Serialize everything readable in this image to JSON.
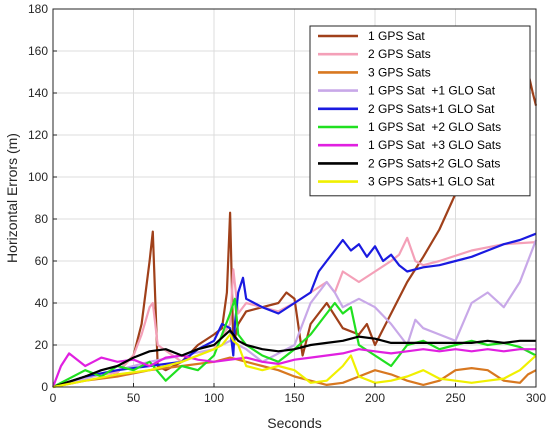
{
  "chart_data": {
    "type": "line",
    "xlabel": "Seconds",
    "ylabel": "Horizontal Errors (m)",
    "xlim": [
      0,
      300
    ],
    "ylim": [
      0,
      180
    ],
    "xticks": [
      0,
      50,
      100,
      150,
      200,
      250,
      300
    ],
    "yticks": [
      0,
      20,
      40,
      60,
      80,
      100,
      120,
      140,
      160,
      180
    ],
    "grid": true,
    "legend_position": "top-right",
    "series": [
      {
        "name": "1 GPS Sat",
        "color": "#a0401a",
        "x": [
          0,
          20,
          40,
          50,
          55,
          60,
          62,
          65,
          70,
          80,
          90,
          100,
          105,
          108,
          110,
          112,
          115,
          120,
          130,
          140,
          145,
          150,
          155,
          160,
          170,
          180,
          190,
          195,
          200,
          210,
          220,
          230,
          240,
          250,
          260,
          270,
          280,
          290,
          295,
          298,
          300
        ],
        "y": [
          0,
          5,
          7,
          15,
          30,
          60,
          74,
          10,
          8,
          12,
          20,
          25,
          28,
          45,
          83,
          20,
          30,
          36,
          38,
          40,
          45,
          42,
          15,
          30,
          40,
          28,
          25,
          30,
          20,
          35,
          50,
          62,
          75,
          92,
          105,
          115,
          125,
          135,
          150,
          140,
          134
        ]
      },
      {
        "name": "2 GPS Sats",
        "color": "#f4a0b8",
        "x": [
          0,
          20,
          40,
          50,
          55,
          60,
          62,
          65,
          80,
          100,
          110,
          112,
          115,
          120,
          130,
          140,
          150,
          160,
          170,
          175,
          180,
          190,
          200,
          210,
          215,
          220,
          225,
          230,
          240,
          260,
          280,
          300
        ],
        "y": [
          0,
          5,
          7,
          15,
          25,
          38,
          40,
          20,
          12,
          18,
          30,
          56,
          35,
          40,
          38,
          36,
          40,
          45,
          50,
          45,
          55,
          50,
          55,
          60,
          63,
          71,
          60,
          58,
          60,
          65,
          68,
          69
        ]
      },
      {
        "name": "3 GPS Sats",
        "color": "#d87820",
        "x": [
          0,
          20,
          40,
          60,
          80,
          100,
          110,
          120,
          130,
          140,
          150,
          160,
          170,
          180,
          190,
          200,
          210,
          220,
          230,
          240,
          250,
          260,
          270,
          280,
          290,
          295,
          300
        ],
        "y": [
          0,
          3,
          5,
          8,
          10,
          12,
          14,
          12,
          10,
          8,
          5,
          3,
          1,
          2,
          5,
          8,
          6,
          3,
          1,
          3,
          8,
          9,
          8,
          3,
          2,
          6,
          8
        ]
      },
      {
        "name": "1 GPS Sat  +1 GLO Sat",
        "color": "#c8a8e8",
        "x": [
          0,
          20,
          40,
          60,
          80,
          100,
          110,
          115,
          120,
          130,
          150,
          160,
          170,
          175,
          180,
          190,
          200,
          210,
          220,
          225,
          230,
          240,
          250,
          260,
          270,
          280,
          290,
          300
        ],
        "y": [
          0,
          4,
          8,
          12,
          15,
          18,
          22,
          20,
          18,
          12,
          20,
          40,
          50,
          45,
          38,
          42,
          38,
          30,
          20,
          32,
          28,
          25,
          22,
          40,
          45,
          38,
          50,
          70
        ]
      },
      {
        "name": "2 GPS Sats+1 GLO Sat",
        "color": "#1a1ae0",
        "x": [
          0,
          20,
          40,
          60,
          80,
          90,
          100,
          105,
          110,
          112,
          113,
          115,
          118,
          120,
          130,
          140,
          150,
          160,
          165,
          170,
          175,
          180,
          185,
          190,
          195,
          200,
          205,
          210,
          215,
          220,
          230,
          240,
          250,
          260,
          270,
          280,
          290,
          300
        ],
        "y": [
          0,
          5,
          8,
          10,
          12,
          18,
          22,
          30,
          28,
          15,
          30,
          45,
          52,
          42,
          38,
          35,
          40,
          45,
          55,
          60,
          65,
          70,
          65,
          68,
          62,
          67,
          60,
          63,
          58,
          55,
          57,
          58,
          60,
          62,
          65,
          68,
          70,
          73
        ]
      },
      {
        "name": "1 GPS Sat  +2 GLO Sats",
        "color": "#20e020",
        "x": [
          0,
          20,
          30,
          40,
          50,
          60,
          70,
          80,
          90,
          100,
          110,
          113,
          115,
          120,
          130,
          140,
          150,
          160,
          170,
          175,
          180,
          185,
          190,
          200,
          210,
          220,
          230,
          240,
          250,
          260,
          270,
          280,
          290,
          300
        ],
        "y": [
          0,
          8,
          5,
          10,
          8,
          12,
          3,
          10,
          8,
          15,
          35,
          42,
          25,
          20,
          15,
          12,
          18,
          25,
          35,
          40,
          35,
          38,
          20,
          15,
          10,
          20,
          22,
          18,
          20,
          22,
          20,
          21,
          19,
          15
        ]
      },
      {
        "name": "1 GPS Sat  +3 GLO Sats",
        "color": "#e020e0",
        "x": [
          0,
          5,
          10,
          15,
          20,
          25,
          30,
          40,
          50,
          60,
          70,
          80,
          90,
          100,
          110,
          120,
          130,
          140,
          150,
          160,
          170,
          180,
          190,
          200,
          210,
          220,
          230,
          240,
          250,
          260,
          270,
          280,
          290,
          300
        ],
        "y": [
          0,
          10,
          16,
          13,
          10,
          12,
          14,
          12,
          13,
          10,
          14,
          15,
          13,
          12,
          13,
          14,
          12,
          11,
          13,
          14,
          15,
          16,
          18,
          17,
          16,
          17,
          18,
          17,
          18,
          17,
          18,
          17,
          18,
          18
        ]
      },
      {
        "name": "2 GPS Sats+2 GLO Sats",
        "color": "#000000",
        "x": [
          0,
          20,
          30,
          40,
          50,
          60,
          70,
          80,
          90,
          100,
          110,
          115,
          120,
          130,
          140,
          150,
          160,
          170,
          180,
          190,
          200,
          210,
          220,
          230,
          240,
          250,
          260,
          270,
          280,
          290,
          300
        ],
        "y": [
          0,
          5,
          8,
          10,
          14,
          17,
          18,
          15,
          18,
          20,
          27,
          22,
          20,
          18,
          17,
          18,
          20,
          21,
          22,
          24,
          23,
          21,
          21,
          21,
          21,
          21,
          21,
          22,
          21,
          22,
          22
        ]
      },
      {
        "name": "3 GPS Sats+1 GLO Sat",
        "color": "#f0f000",
        "x": [
          0,
          20,
          40,
          60,
          80,
          90,
          100,
          105,
          110,
          112,
          115,
          120,
          130,
          140,
          150,
          155,
          160,
          170,
          180,
          185,
          190,
          200,
          210,
          220,
          230,
          240,
          250,
          260,
          270,
          280,
          290,
          300
        ],
        "y": [
          0,
          3,
          6,
          8,
          12,
          15,
          18,
          20,
          25,
          22,
          20,
          10,
          8,
          10,
          8,
          5,
          2,
          3,
          10,
          15,
          5,
          2,
          3,
          5,
          8,
          4,
          3,
          2,
          3,
          4,
          8,
          15
        ]
      }
    ]
  }
}
